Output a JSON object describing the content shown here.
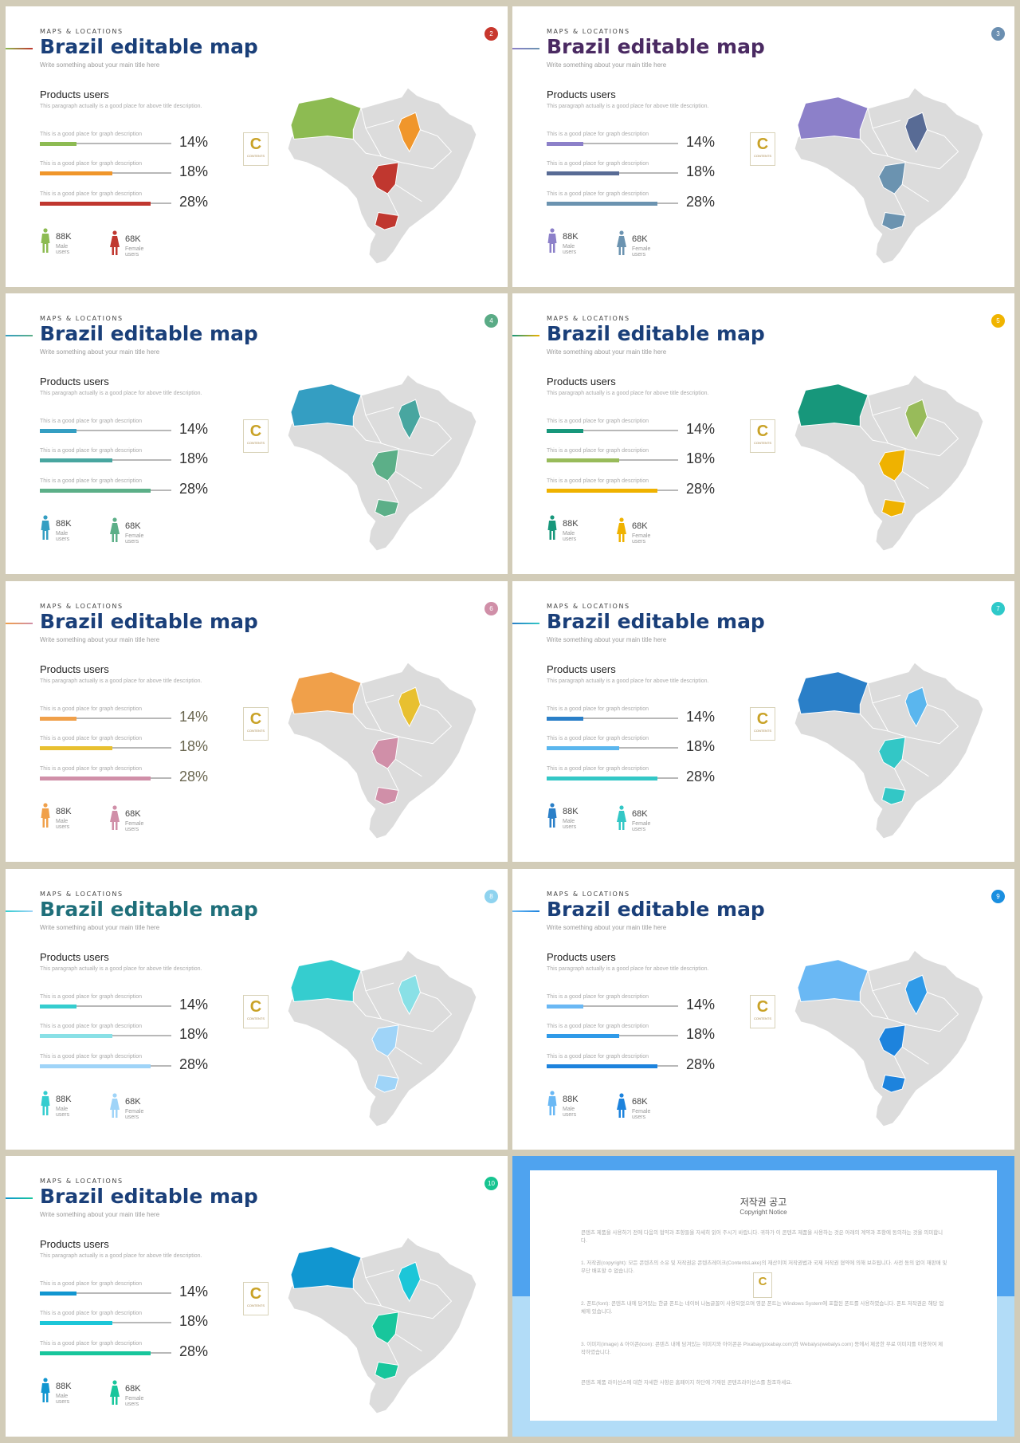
{
  "common": {
    "kicker": "MAPS & LOCATIONS",
    "title": "Brazil editable map",
    "subtitle": "Write something about your main title here",
    "section_title": "Products users",
    "paragraph": "This paragraph actually is a good place for above title description.",
    "bar_desc": "This is a good place for graph description",
    "male_label": "Male users",
    "female_label": "Female users",
    "logo_letter": "C",
    "logo_text": "CONTENTS"
  },
  "slides": [
    {
      "num": "2",
      "title_color": "#1a3f79",
      "badge": "#c8372d",
      "c1": "#8dbb52",
      "c2": "#f0962b",
      "c3": "#c0372f",
      "male_color": "#8dbb52",
      "female_color": "#c0372f",
      "pct_color": "#333333",
      "bars": [
        {
          "value": "14%",
          "fill": 0.28
        },
        {
          "value": "18%",
          "fill": 0.55
        },
        {
          "value": "28%",
          "fill": 0.84
        }
      ],
      "male": "88K",
      "female": "68K"
    },
    {
      "num": "3",
      "title_color": "#4a2a62",
      "badge": "#6b8fb1",
      "c1": "#8c80c9",
      "c2": "#586b95",
      "c3": "#6b93b0",
      "male_color": "#8c80c9",
      "female_color": "#6b93b0",
      "pct_color": "#333333",
      "bars": [
        {
          "value": "14%",
          "fill": 0.28
        },
        {
          "value": "18%",
          "fill": 0.55
        },
        {
          "value": "28%",
          "fill": 0.84
        }
      ],
      "male": "88K",
      "female": "68K"
    },
    {
      "num": "4",
      "title_color": "#1a3f79",
      "badge": "#5aab86",
      "c1": "#349ec2",
      "c2": "#48a6a0",
      "c3": "#5caf88",
      "male_color": "#349ec2",
      "female_color": "#5caf88",
      "pct_color": "#333333",
      "bars": [
        {
          "value": "14%",
          "fill": 0.28
        },
        {
          "value": "18%",
          "fill": 0.55
        },
        {
          "value": "28%",
          "fill": 0.84
        }
      ],
      "male": "88K",
      "female": "68K"
    },
    {
      "num": "5",
      "title_color": "#1a3f79",
      "badge": "#f0b400",
      "c1": "#17977b",
      "c2": "#98bb5a",
      "c3": "#efb200",
      "male_color": "#17977b",
      "female_color": "#efb200",
      "pct_color": "#333333",
      "bars": [
        {
          "value": "14%",
          "fill": 0.28
        },
        {
          "value": "18%",
          "fill": 0.55
        },
        {
          "value": "28%",
          "fill": 0.84
        }
      ],
      "male": "88K",
      "female": "68K"
    },
    {
      "num": "6",
      "title_color": "#1a3f79",
      "badge": "#d08fa8",
      "c1": "#f0a04a",
      "c2": "#e8c030",
      "c3": "#d08fa8",
      "male_color": "#f0a04a",
      "female_color": "#d08fa8",
      "pct_color": "#6a6650",
      "bars": [
        {
          "value": "14%",
          "fill": 0.28
        },
        {
          "value": "18%",
          "fill": 0.55
        },
        {
          "value": "28%",
          "fill": 0.84
        }
      ],
      "male": "88K",
      "female": "68K"
    },
    {
      "num": "7",
      "title_color": "#1a3f79",
      "badge": "#2ec9c9",
      "c1": "#2a7fc8",
      "c2": "#5ab6ee",
      "c3": "#33c7c6",
      "male_color": "#2a7fc8",
      "female_color": "#33c7c6",
      "pct_color": "#333333",
      "bars": [
        {
          "value": "14%",
          "fill": 0.28
        },
        {
          "value": "18%",
          "fill": 0.55
        },
        {
          "value": "28%",
          "fill": 0.84
        }
      ],
      "male": "88K",
      "female": "68K"
    },
    {
      "num": "8",
      "title_color": "#1f6f7a",
      "badge": "#8fd3ef",
      "c1": "#35cdcf",
      "c2": "#89e0e6",
      "c3": "#9fd4f8",
      "male_color": "#35cdcf",
      "female_color": "#9fd4f8",
      "pct_color": "#333333",
      "bars": [
        {
          "value": "14%",
          "fill": 0.28
        },
        {
          "value": "18%",
          "fill": 0.55
        },
        {
          "value": "28%",
          "fill": 0.84
        }
      ],
      "male": "88K",
      "female": "68K"
    },
    {
      "num": "9",
      "title_color": "#1a3f79",
      "badge": "#1a8fe0",
      "c1": "#6ab8f4",
      "c2": "#2f9ae8",
      "c3": "#1d83dd",
      "male_color": "#6ab8f4",
      "female_color": "#1d83dd",
      "pct_color": "#333333",
      "bars": [
        {
          "value": "14%",
          "fill": 0.28
        },
        {
          "value": "18%",
          "fill": 0.55
        },
        {
          "value": "28%",
          "fill": 0.84
        }
      ],
      "male": "88K",
      "female": "68K"
    },
    {
      "num": "10",
      "title_color": "#1a3f79",
      "badge": "#17c490",
      "c1": "#1196d0",
      "c2": "#1cc6d8",
      "c3": "#18c69c",
      "male_color": "#1196d0",
      "female_color": "#18c69c",
      "pct_color": "#333333",
      "bars": [
        {
          "value": "14%",
          "fill": 0.28
        },
        {
          "value": "18%",
          "fill": 0.55
        },
        {
          "value": "28%",
          "fill": 0.84
        }
      ],
      "male": "88K",
      "female": "68K"
    }
  ],
  "copyright": {
    "title": "저작권 공고",
    "subtitle": "Copyright Notice",
    "paragraphs": [
      "콘텐츠 제품을 사용하기 전에 다음의 협약과 조항들을 자세히 읽어 주시기 바랍니다. 귀하가 이 콘텐츠 제품을 사용하는 것은 아래의 계약과 조항에 동의하는 것을 의미합니다.",
      "1. 저작권(copyright): 모든 콘텐츠의 소유 및 저작권은 콘텐츠레이크(ContentsLake)의 재산이며 저작권법과 국제 저작권 협약에 의해 보호됩니다. 사전 동의 없이 재판매 및 무단 배포할 수 없습니다.",
      "2. 폰트(font): 콘텐츠 내에 담겨있는 한글 폰트는 네이버 나눔글꼴이 사용되었으며 영문 폰트는 Windows System에 포함된 폰트를 사용하였습니다. 폰트 저작권은 해당 업체에 있습니다.",
      "3. 이미지(image) & 아이콘(icon): 콘텐츠 내에 담겨있는 이미지와 아이콘은 Pixabay(pixabay.com)와 Webalys(webalys.com) 등에서 제공한 무료 이미지를 이용하여 제작하였습니다.",
      "콘텐츠 제품 라이선스에 대한 자세한 사항은 홈페이지 하단에 기재된 콘텐츠라이선스를 참조하세요."
    ]
  }
}
